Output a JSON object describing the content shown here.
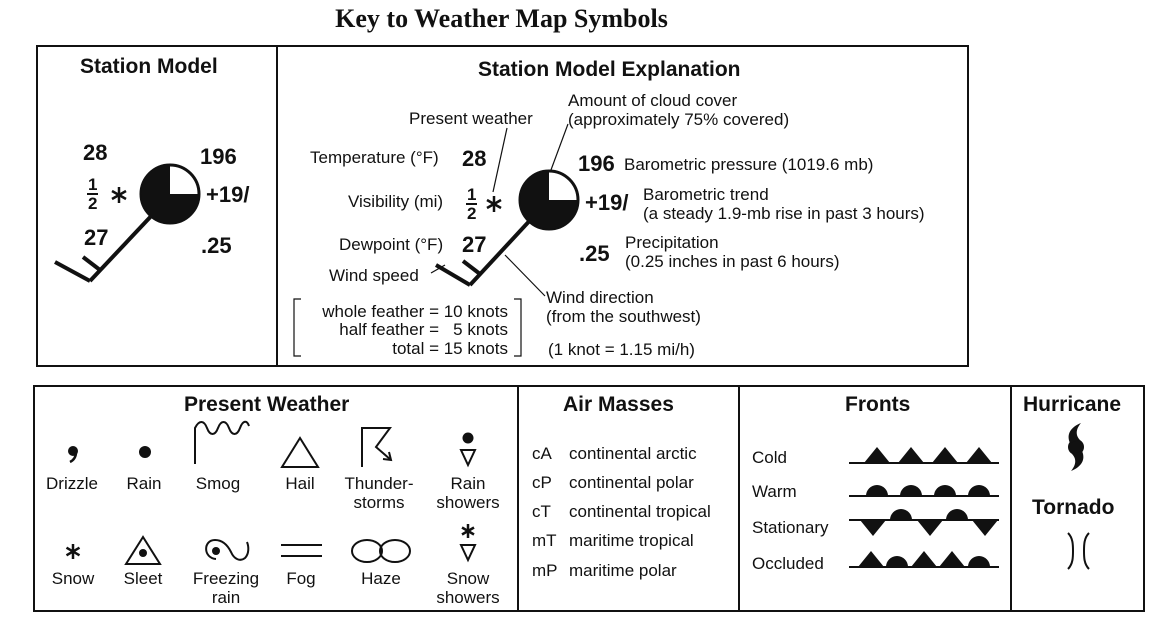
{
  "title": "Key to Weather Map Symbols",
  "station_model": {
    "header": "Station Model",
    "temperature": "28",
    "visibility_num": "1",
    "visibility_den": "2",
    "dewpoint": "27",
    "pressure": "196",
    "trend": "+19/",
    "precip": ".25"
  },
  "explanation": {
    "header": "Station Model Explanation",
    "present_weather": "Present weather",
    "cloud_cover_1": "Amount of cloud cover",
    "cloud_cover_2": "(approximately 75% covered)",
    "temperature_label": "Temperature (°F)",
    "temperature": "28",
    "visibility_label": "Visibility (mi)",
    "visibility_num": "1",
    "visibility_den": "2",
    "dewpoint_label": "Dewpoint (°F)",
    "dewpoint": "27",
    "wind_speed": "Wind speed",
    "pressure": "196",
    "pressure_label": "Barometric pressure (1019.6 mb)",
    "trend": "+19/",
    "trend_label_1": "Barometric trend",
    "trend_label_2": "(a steady 1.9-mb rise in past 3 hours)",
    "precip": ".25",
    "precip_label_1": "Precipitation",
    "precip_label_2": "(0.25 inches in past 6 hours)",
    "wind_dir_1": "Wind direction",
    "wind_dir_2": "(from the southwest)",
    "knots_1": "whole feather = 10 knots",
    "knots_2": "half feather =   5 knots",
    "knots_3": "total = 15 knots",
    "knot_conv": "(1 knot = 1.15 mi/h)"
  },
  "present_weather": {
    "header": "Present Weather",
    "drizzle": "Drizzle",
    "rain": "Rain",
    "smog": "Smog",
    "hail": "Hail",
    "thunder_1": "Thunder-",
    "thunder_2": "storms",
    "rain_showers_1": "Rain",
    "rain_showers_2": "showers",
    "snow": "Snow",
    "sleet": "Sleet",
    "freezing_1": "Freezing",
    "freezing_2": "rain",
    "fog": "Fog",
    "haze": "Haze",
    "snow_showers_1": "Snow",
    "snow_showers_2": "showers"
  },
  "air_masses": {
    "header": "Air Masses",
    "items": [
      {
        "code": "cA",
        "name": "continental arctic"
      },
      {
        "code": "cP",
        "name": "continental polar"
      },
      {
        "code": "cT",
        "name": "continental tropical"
      },
      {
        "code": "mT",
        "name": "maritime tropical"
      },
      {
        "code": "mP",
        "name": "maritime polar"
      }
    ]
  },
  "fronts": {
    "header": "Fronts",
    "cold": "Cold",
    "warm": "Warm",
    "stationary": "Stationary",
    "occluded": "Occluded"
  },
  "hurricane": {
    "header": "Hurricane"
  },
  "tornado": {
    "header": "Tornado"
  }
}
